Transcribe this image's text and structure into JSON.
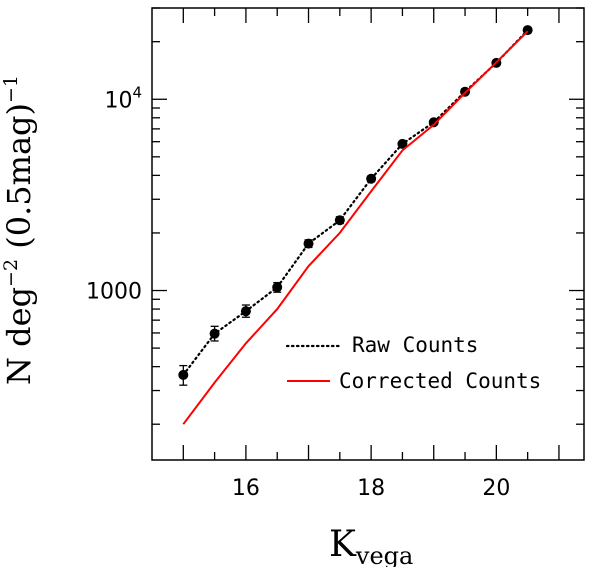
{
  "chart_data": {
    "type": "line",
    "title": "",
    "xlabel": "K",
    "xlabel_sub": "vega",
    "ylabel_main": "N deg",
    "ylabel_exp": "−2",
    "ylabel_paren": "(0.5mag)",
    "ylabel_paren_exp": "−1",
    "x_scale": "linear",
    "y_scale": "log",
    "xlim": [
      14.5,
      21.4
    ],
    "ylim": [
      130,
      30000
    ],
    "x_ticks": [
      16,
      18,
      20
    ],
    "x_tick_labels": [
      "16",
      "18",
      "20"
    ],
    "y_ticks": [
      1000,
      10000
    ],
    "y_tick_labels": [
      {
        "base": "1000",
        "exp": ""
      },
      {
        "base": "10",
        "exp": "4"
      }
    ],
    "grid": false,
    "legend_placement": "lower-right",
    "series": [
      {
        "name": "Raw Counts",
        "style": "dotted",
        "color": "#000000",
        "markers": true,
        "x": [
          15.0,
          15.5,
          16.0,
          16.5,
          17.0,
          17.5,
          18.0,
          18.5,
          19.0,
          19.5,
          20.0,
          20.5
        ],
        "y": [
          362,
          595,
          780,
          1040,
          1760,
          2330,
          3840,
          5840,
          7580,
          10950,
          15500,
          23000
        ],
        "err_low": [
          320,
          545,
          725,
          980,
          1680,
          2240,
          3720,
          5700,
          7380,
          10750,
          15250,
          22700
        ],
        "err_high": [
          405,
          650,
          840,
          1100,
          1840,
          2430,
          3960,
          5990,
          7780,
          11150,
          15750,
          23300
        ]
      },
      {
        "name": "Corrected Counts",
        "style": "solid",
        "color": "#ff0000",
        "markers": false,
        "x": [
          15.0,
          15.5,
          16.0,
          16.5,
          17.0,
          17.5,
          18.0,
          18.5,
          19.0,
          19.5,
          20.0,
          20.5
        ],
        "y": [
          200,
          330,
          530,
          800,
          1340,
          2000,
          3300,
          5400,
          7350,
          10800,
          15600,
          22700
        ]
      }
    ]
  }
}
